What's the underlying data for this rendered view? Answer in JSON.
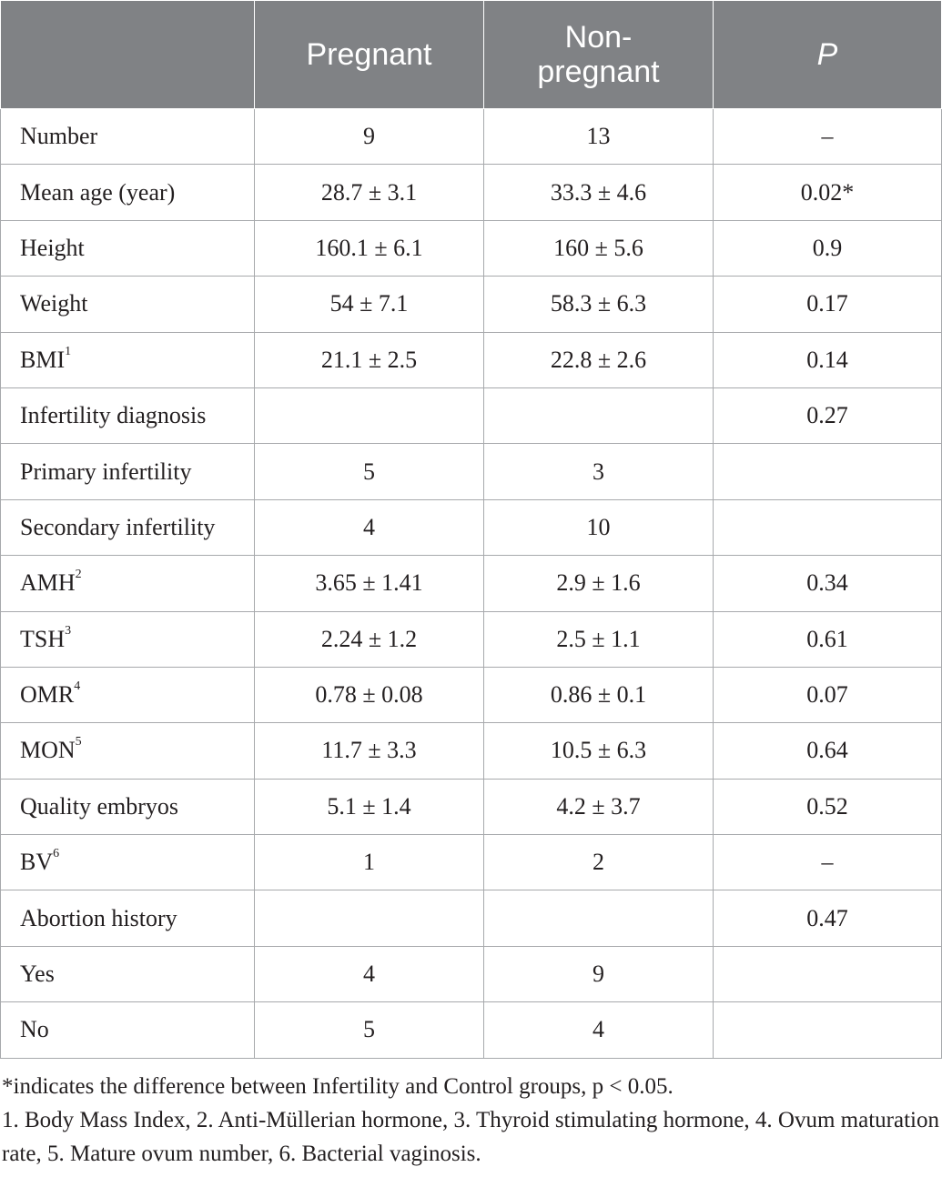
{
  "table": {
    "headers": [
      "",
      "Pregnant",
      "Non-pregnant",
      "P"
    ],
    "rows": [
      {
        "label": "Number",
        "sup": "",
        "pregnant": "9",
        "non_pregnant": "13",
        "p": "–"
      },
      {
        "label": "Mean age (year)",
        "sup": "",
        "pregnant": "28.7 ± 3.1",
        "non_pregnant": "33.3 ± 4.6",
        "p": "0.02*"
      },
      {
        "label": "Height",
        "sup": "",
        "pregnant": "160.1 ± 6.1",
        "non_pregnant": "160 ± 5.6",
        "p": "0.9"
      },
      {
        "label": "Weight",
        "sup": "",
        "pregnant": "54 ± 7.1",
        "non_pregnant": "58.3 ± 6.3",
        "p": "0.17"
      },
      {
        "label": "BMI",
        "sup": "1",
        "pregnant": "21.1 ± 2.5",
        "non_pregnant": "22.8 ± 2.6",
        "p": "0.14"
      },
      {
        "label": "Infertility diagnosis",
        "sup": "",
        "pregnant": "",
        "non_pregnant": "",
        "p": "0.27"
      },
      {
        "label": "Primary infertility",
        "sup": "",
        "pregnant": "5",
        "non_pregnant": "3",
        "p": ""
      },
      {
        "label": "Secondary infertility",
        "sup": "",
        "pregnant": "4",
        "non_pregnant": "10",
        "p": ""
      },
      {
        "label": "AMH",
        "sup": "2",
        "pregnant": "3.65 ± 1.41",
        "non_pregnant": "2.9 ± 1.6",
        "p": "0.34"
      },
      {
        "label": "TSH",
        "sup": "3",
        "pregnant": "2.24 ± 1.2",
        "non_pregnant": "2.5 ± 1.1",
        "p": "0.61"
      },
      {
        "label": "OMR",
        "sup": "4",
        "pregnant": "0.78 ± 0.08",
        "non_pregnant": "0.86 ± 0.1",
        "p": "0.07"
      },
      {
        "label": "MON",
        "sup": "5",
        "pregnant": "11.7 ± 3.3",
        "non_pregnant": "10.5 ± 6.3",
        "p": "0.64"
      },
      {
        "label": "Quality embryos",
        "sup": "",
        "pregnant": "5.1 ± 1.4",
        "non_pregnant": "4.2 ± 3.7",
        "p": "0.52"
      },
      {
        "label": "BV",
        "sup": "6",
        "pregnant": "1",
        "non_pregnant": "2",
        "p": "–"
      },
      {
        "label": "Abortion history",
        "sup": "",
        "pregnant": "",
        "non_pregnant": "",
        "p": "0.47"
      },
      {
        "label": "Yes",
        "sup": "",
        "pregnant": "4",
        "non_pregnant": "9",
        "p": ""
      },
      {
        "label": "No",
        "sup": "",
        "pregnant": "5",
        "non_pregnant": "4",
        "p": ""
      }
    ]
  },
  "footnotes": {
    "significance": "*indicates the difference between Infertility and Control groups, p < 0.05.",
    "abbreviations": "1. Body Mass Index, 2. Anti-Müllerian hormone, 3. Thyroid stimulating hormone, 4. Ovum maturation rate, 5. Mature ovum number, 6. Bacterial vaginosis."
  },
  "colors": {
    "header_background": "#808285",
    "header_text": "#ffffff",
    "grid_line": "#a7a9ac",
    "body_text": "#231f20"
  }
}
